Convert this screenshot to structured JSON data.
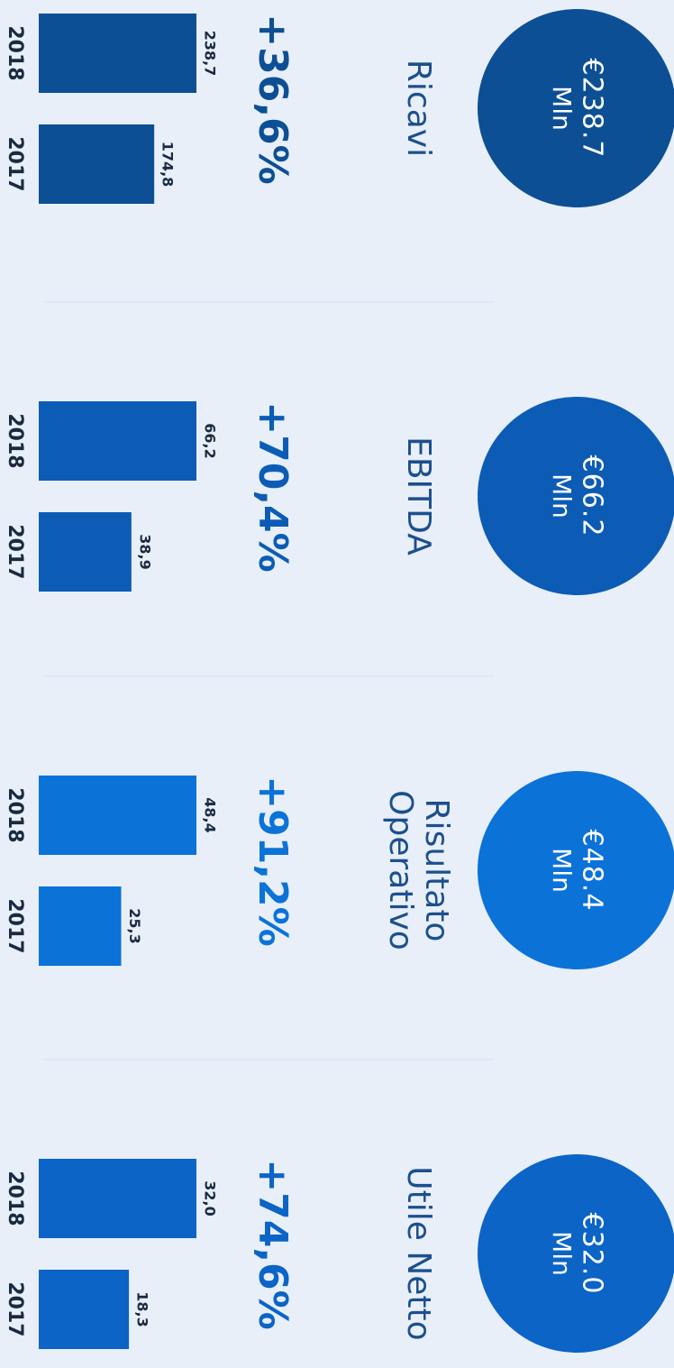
{
  "panels": [
    {
      "label_lines": [
        "Ricavi"
      ],
      "amount": "€238.7",
      "unit": "Mln",
      "change": "+36,6%",
      "color": "#0d4f94",
      "years": [
        "2018",
        "2017"
      ],
      "values": [
        238.7,
        174.8
      ],
      "value_labels": [
        "238,7",
        "174,8"
      ]
    },
    {
      "label_lines": [
        "EBITDA"
      ],
      "amount": "€66.2",
      "unit": "Mln",
      "change": "+70,4%",
      "color": "#0c5cb5",
      "years": [
        "2018",
        "2017"
      ],
      "values": [
        66.2,
        38.9
      ],
      "value_labels": [
        "66,2",
        "38,9"
      ]
    },
    {
      "label_lines": [
        "Risultato",
        "Operativo"
      ],
      "amount": "€48.4",
      "unit": "Mln",
      "change": "+91,2%",
      "color": "#0b72d8",
      "years": [
        "2018",
        "2017"
      ],
      "values": [
        48.4,
        25.3
      ],
      "value_labels": [
        "48,4",
        "25,3"
      ]
    },
    {
      "label_lines": [
        "Utile Netto"
      ],
      "amount": "€32.0",
      "unit": "Mln",
      "change": "+74,6%",
      "color": "#0b64c6",
      "years": [
        "2018",
        "2017"
      ],
      "values": [
        32.0,
        18.3
      ],
      "value_labels": [
        "32,0",
        "18,3"
      ]
    }
  ]
}
